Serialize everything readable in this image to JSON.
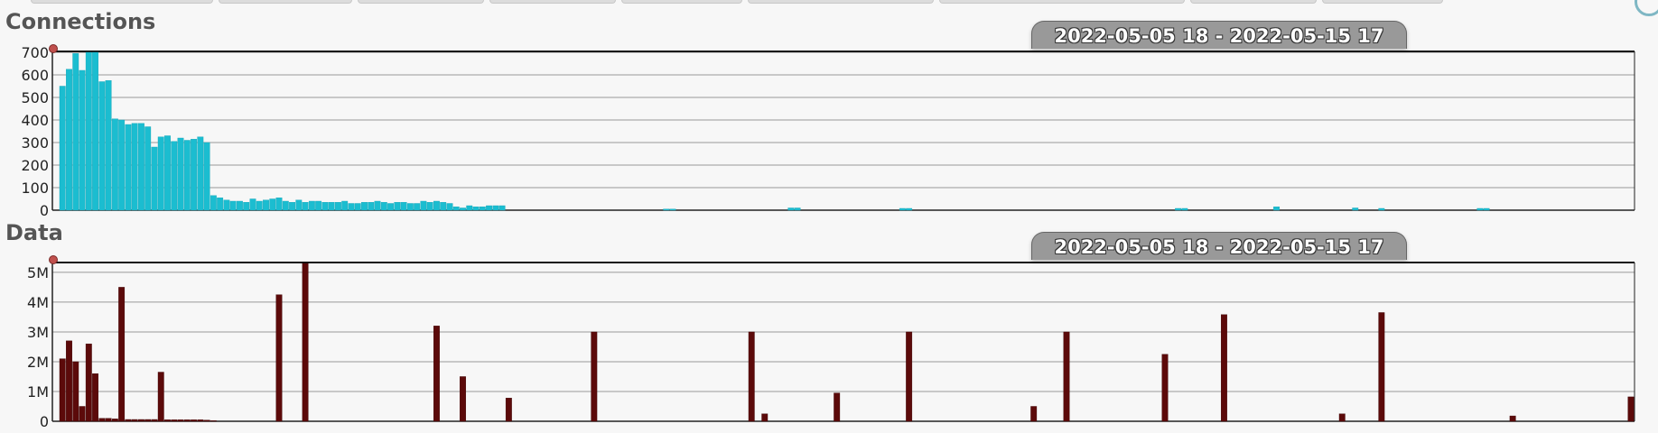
{
  "tabs": [
    {
      "label": ""
    },
    {
      "label": ""
    },
    {
      "label": ""
    },
    {
      "label": ""
    },
    {
      "label": ""
    },
    {
      "label": ""
    },
    {
      "label": ""
    },
    {
      "label": ""
    },
    {
      "label": ""
    }
  ],
  "colors": {
    "connections_bar": "#1bbdd0",
    "data_bar": "#5c0a0a",
    "grid": "#999999",
    "handle": "#c0504d",
    "badge": "#999999"
  },
  "chart_data": [
    {
      "type": "bar",
      "title": "Connections",
      "range_label": "2022-05-05 18 - 2022-05-15 17",
      "ylim": [
        0,
        700
      ],
      "yticks": [
        "0",
        "100",
        "200",
        "300",
        "400",
        "500",
        "600",
        "700"
      ],
      "ytick_values": [
        0,
        100,
        200,
        300,
        400,
        500,
        600,
        700
      ],
      "bucket_count": 240,
      "values": [
        550,
        625,
        695,
        620,
        700,
        700,
        570,
        575,
        405,
        400,
        380,
        385,
        385,
        370,
        280,
        325,
        330,
        305,
        320,
        310,
        315,
        325,
        300,
        65,
        55,
        45,
        40,
        40,
        35,
        50,
        40,
        45,
        50,
        55,
        40,
        35,
        45,
        35,
        40,
        40,
        35,
        35,
        35,
        40,
        30,
        30,
        35,
        35,
        40,
        35,
        30,
        35,
        35,
        30,
        30,
        40,
        35,
        40,
        35,
        30,
        15,
        10,
        20,
        15,
        15,
        20,
        20,
        20,
        0,
        0,
        0,
        0,
        0,
        0,
        0,
        0,
        0,
        0,
        0,
        0,
        0,
        0,
        0,
        0,
        0,
        0,
        0,
        0,
        0,
        0,
        0,
        0,
        5,
        5,
        0,
        0,
        0,
        0,
        0,
        0,
        0,
        0,
        0,
        0,
        0,
        0,
        0,
        0,
        0,
        0,
        0,
        10,
        10,
        0,
        0,
        0,
        0,
        0,
        0,
        0,
        0,
        0,
        0,
        0,
        0,
        0,
        0,
        0,
        8,
        8,
        0,
        0,
        0,
        0,
        0,
        0,
        0,
        0,
        0,
        0,
        0,
        0,
        0,
        0,
        0,
        0,
        0,
        0,
        0,
        0,
        0,
        0,
        0,
        0,
        0,
        0,
        0,
        0,
        0,
        0,
        0,
        0,
        0,
        0,
        0,
        0,
        0,
        0,
        0,
        0,
        8,
        8,
        0,
        0,
        0,
        0,
        0,
        0,
        0,
        0,
        0,
        0,
        0,
        0,
        0,
        15,
        0,
        0,
        0,
        0,
        0,
        0,
        0,
        0,
        0,
        0,
        0,
        10,
        0,
        0,
        0,
        8,
        0,
        0,
        0,
        0,
        0,
        0,
        0,
        0,
        0,
        0,
        0,
        0,
        0,
        0,
        8,
        8,
        0,
        0,
        0,
        0,
        0,
        0,
        0,
        0,
        0,
        0,
        0,
        0,
        0,
        0,
        0,
        0,
        0,
        0,
        0,
        0,
        0,
        0,
        0,
        0,
        0,
        0,
        0,
        0,
        0,
        0,
        0,
        0,
        0,
        0,
        0,
        0,
        0,
        0,
        0,
        0,
        0,
        0,
        0,
        0,
        0,
        0,
        0,
        0
      ]
    },
    {
      "type": "bar",
      "title": "Data",
      "range_label": "2022-05-05 18 - 2022-05-15 17",
      "ylim": [
        0,
        5300000
      ],
      "yticks": [
        "0",
        "1M",
        "2M",
        "3M",
        "4M",
        "5M"
      ],
      "ytick_values": [
        0,
        1000000,
        2000000,
        3000000,
        4000000,
        5000000
      ],
      "bucket_count": 240,
      "bars": [
        {
          "i": 0,
          "v": 2100000
        },
        {
          "i": 1,
          "v": 2700000
        },
        {
          "i": 2,
          "v": 2000000
        },
        {
          "i": 3,
          "v": 500000
        },
        {
          "i": 4,
          "v": 2600000
        },
        {
          "i": 5,
          "v": 1600000
        },
        {
          "i": 6,
          "v": 100000
        },
        {
          "i": 7,
          "v": 100000
        },
        {
          "i": 8,
          "v": 80000
        },
        {
          "i": 9,
          "v": 4500000
        },
        {
          "i": 10,
          "v": 60000
        },
        {
          "i": 11,
          "v": 60000
        },
        {
          "i": 12,
          "v": 60000
        },
        {
          "i": 13,
          "v": 60000
        },
        {
          "i": 14,
          "v": 60000
        },
        {
          "i": 15,
          "v": 1650000
        },
        {
          "i": 16,
          "v": 50000
        },
        {
          "i": 17,
          "v": 50000
        },
        {
          "i": 18,
          "v": 50000
        },
        {
          "i": 19,
          "v": 50000
        },
        {
          "i": 20,
          "v": 50000
        },
        {
          "i": 21,
          "v": 50000
        },
        {
          "i": 22,
          "v": 40000
        },
        {
          "i": 23,
          "v": 20000
        },
        {
          "i": 33,
          "v": 4250000
        },
        {
          "i": 37,
          "v": 5300000
        },
        {
          "i": 57,
          "v": 3200000
        },
        {
          "i": 61,
          "v": 1500000
        },
        {
          "i": 68,
          "v": 780000
        },
        {
          "i": 81,
          "v": 3000000
        },
        {
          "i": 105,
          "v": 3000000
        },
        {
          "i": 107,
          "v": 250000
        },
        {
          "i": 118,
          "v": 950000
        },
        {
          "i": 129,
          "v": 3000000
        },
        {
          "i": 148,
          "v": 500000
        },
        {
          "i": 153,
          "v": 3000000
        },
        {
          "i": 168,
          "v": 2250000
        },
        {
          "i": 177,
          "v": 3580000
        },
        {
          "i": 195,
          "v": 250000
        },
        {
          "i": 201,
          "v": 3650000
        },
        {
          "i": 221,
          "v": 180000
        },
        {
          "i": 239,
          "v": 820000
        }
      ]
    }
  ]
}
